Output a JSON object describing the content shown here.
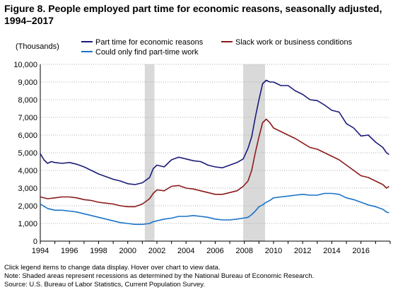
{
  "title": "Figure 8. People employed part time for economic reasons, seasonally adjusted, 1994–2017",
  "chart_data": {
    "type": "line",
    "ylabel": "(Thousands)",
    "xlim": [
      1994,
      2018
    ],
    "ylim": [
      0,
      10000
    ],
    "y_ticks": [
      0,
      1000,
      2000,
      3000,
      4000,
      5000,
      6000,
      7000,
      8000,
      9000,
      10000
    ],
    "y_tick_labels": [
      "0",
      "1,000",
      "2,000",
      "3,000",
      "4,000",
      "5,000",
      "6,000",
      "7,000",
      "8,000",
      "9,000",
      "10,000"
    ],
    "x_ticks": [
      1994,
      1996,
      1998,
      2000,
      2002,
      2004,
      2006,
      2008,
      2010,
      2012,
      2014,
      2016
    ],
    "x_tick_labels": [
      "1994",
      "1996",
      "1998",
      "2000",
      "2002",
      "2004",
      "2006",
      "2008",
      "2010",
      "2012",
      "2014",
      "2016"
    ],
    "grid": "horizontal dotted",
    "legend_position": "top",
    "recessions": [
      [
        2001.17,
        2001.83
      ],
      [
        2007.92,
        2009.42
      ]
    ],
    "series": [
      {
        "name": "Part time for economic reasons",
        "color": "#1a1a7a",
        "points": [
          [
            1994.0,
            4950
          ],
          [
            1994.25,
            4600
          ],
          [
            1994.5,
            4400
          ],
          [
            1994.75,
            4500
          ],
          [
            1995.0,
            4450
          ],
          [
            1995.5,
            4400
          ],
          [
            1996.0,
            4450
          ],
          [
            1996.5,
            4350
          ],
          [
            1997.0,
            4200
          ],
          [
            1997.5,
            4000
          ],
          [
            1998.0,
            3800
          ],
          [
            1998.5,
            3650
          ],
          [
            1999.0,
            3500
          ],
          [
            1999.5,
            3400
          ],
          [
            2000.0,
            3250
          ],
          [
            2000.5,
            3200
          ],
          [
            2001.0,
            3300
          ],
          [
            2001.5,
            3600
          ],
          [
            2001.75,
            4100
          ],
          [
            2002.0,
            4300
          ],
          [
            2002.5,
            4200
          ],
          [
            2003.0,
            4600
          ],
          [
            2003.5,
            4750
          ],
          [
            2004.0,
            4650
          ],
          [
            2004.5,
            4550
          ],
          [
            2005.0,
            4500
          ],
          [
            2005.5,
            4300
          ],
          [
            2006.0,
            4200
          ],
          [
            2006.5,
            4150
          ],
          [
            2007.0,
            4300
          ],
          [
            2007.5,
            4450
          ],
          [
            2007.92,
            4650
          ],
          [
            2008.25,
            5250
          ],
          [
            2008.5,
            5900
          ],
          [
            2008.75,
            7000
          ],
          [
            2009.0,
            8000
          ],
          [
            2009.25,
            8900
          ],
          [
            2009.5,
            9100
          ],
          [
            2009.75,
            9000
          ],
          [
            2010.0,
            9000
          ],
          [
            2010.5,
            8800
          ],
          [
            2011.0,
            8800
          ],
          [
            2011.5,
            8500
          ],
          [
            2012.0,
            8300
          ],
          [
            2012.5,
            8000
          ],
          [
            2013.0,
            7950
          ],
          [
            2013.5,
            7700
          ],
          [
            2014.0,
            7400
          ],
          [
            2014.5,
            7300
          ],
          [
            2015.0,
            6650
          ],
          [
            2015.5,
            6400
          ],
          [
            2016.0,
            5950
          ],
          [
            2016.5,
            6000
          ],
          [
            2017.0,
            5600
          ],
          [
            2017.5,
            5300
          ],
          [
            2017.75,
            5000
          ],
          [
            2017.92,
            4900
          ]
        ]
      },
      {
        "name": "Slack work or business conditions",
        "color": "#8b1a1a",
        "points": [
          [
            1994.0,
            2500
          ],
          [
            1994.5,
            2400
          ],
          [
            1995.0,
            2450
          ],
          [
            1995.5,
            2500
          ],
          [
            1996.0,
            2500
          ],
          [
            1996.5,
            2450
          ],
          [
            1997.0,
            2350
          ],
          [
            1997.5,
            2300
          ],
          [
            1998.0,
            2200
          ],
          [
            1998.5,
            2150
          ],
          [
            1999.0,
            2100
          ],
          [
            1999.5,
            2000
          ],
          [
            2000.0,
            1950
          ],
          [
            2000.5,
            1950
          ],
          [
            2001.0,
            2100
          ],
          [
            2001.5,
            2400
          ],
          [
            2001.75,
            2700
          ],
          [
            2002.0,
            2900
          ],
          [
            2002.5,
            2850
          ],
          [
            2003.0,
            3100
          ],
          [
            2003.5,
            3150
          ],
          [
            2004.0,
            3000
          ],
          [
            2004.5,
            2950
          ],
          [
            2005.0,
            2850
          ],
          [
            2005.5,
            2750
          ],
          [
            2006.0,
            2650
          ],
          [
            2006.5,
            2650
          ],
          [
            2007.0,
            2750
          ],
          [
            2007.5,
            2850
          ],
          [
            2007.92,
            3100
          ],
          [
            2008.25,
            3400
          ],
          [
            2008.5,
            4000
          ],
          [
            2008.75,
            5000
          ],
          [
            2009.0,
            5900
          ],
          [
            2009.25,
            6700
          ],
          [
            2009.5,
            6900
          ],
          [
            2009.75,
            6700
          ],
          [
            2010.0,
            6400
          ],
          [
            2010.5,
            6200
          ],
          [
            2011.0,
            6000
          ],
          [
            2011.5,
            5800
          ],
          [
            2012.0,
            5550
          ],
          [
            2012.5,
            5300
          ],
          [
            2013.0,
            5200
          ],
          [
            2013.5,
            5000
          ],
          [
            2014.0,
            4800
          ],
          [
            2014.5,
            4600
          ],
          [
            2015.0,
            4300
          ],
          [
            2015.5,
            4000
          ],
          [
            2016.0,
            3700
          ],
          [
            2016.5,
            3600
          ],
          [
            2017.0,
            3400
          ],
          [
            2017.5,
            3200
          ],
          [
            2017.75,
            3000
          ],
          [
            2017.92,
            3100
          ]
        ]
      },
      {
        "name": "Could only find part-time work",
        "color": "#1a73c8",
        "points": [
          [
            1994.0,
            2100
          ],
          [
            1994.5,
            1850
          ],
          [
            1995.0,
            1750
          ],
          [
            1995.5,
            1750
          ],
          [
            1996.0,
            1700
          ],
          [
            1996.5,
            1650
          ],
          [
            1997.0,
            1550
          ],
          [
            1997.5,
            1450
          ],
          [
            1998.0,
            1350
          ],
          [
            1998.5,
            1250
          ],
          [
            1999.0,
            1150
          ],
          [
            1999.5,
            1050
          ],
          [
            2000.0,
            1000
          ],
          [
            2000.5,
            950
          ],
          [
            2001.0,
            950
          ],
          [
            2001.5,
            1000
          ],
          [
            2001.75,
            1100
          ],
          [
            2002.0,
            1150
          ],
          [
            2002.5,
            1250
          ],
          [
            2003.0,
            1300
          ],
          [
            2003.5,
            1400
          ],
          [
            2004.0,
            1400
          ],
          [
            2004.5,
            1450
          ],
          [
            2005.0,
            1400
          ],
          [
            2005.5,
            1350
          ],
          [
            2006.0,
            1250
          ],
          [
            2006.5,
            1200
          ],
          [
            2007.0,
            1200
          ],
          [
            2007.5,
            1250
          ],
          [
            2007.92,
            1300
          ],
          [
            2008.25,
            1350
          ],
          [
            2008.5,
            1500
          ],
          [
            2008.75,
            1700
          ],
          [
            2009.0,
            1950
          ],
          [
            2009.25,
            2050
          ],
          [
            2009.5,
            2200
          ],
          [
            2009.75,
            2300
          ],
          [
            2010.0,
            2450
          ],
          [
            2010.5,
            2500
          ],
          [
            2011.0,
            2550
          ],
          [
            2011.5,
            2600
          ],
          [
            2012.0,
            2650
          ],
          [
            2012.5,
            2600
          ],
          [
            2013.0,
            2600
          ],
          [
            2013.5,
            2700
          ],
          [
            2014.0,
            2700
          ],
          [
            2014.5,
            2650
          ],
          [
            2015.0,
            2450
          ],
          [
            2015.5,
            2350
          ],
          [
            2016.0,
            2200
          ],
          [
            2016.5,
            2050
          ],
          [
            2017.0,
            1950
          ],
          [
            2017.5,
            1800
          ],
          [
            2017.75,
            1650
          ],
          [
            2017.92,
            1600
          ]
        ]
      }
    ]
  },
  "notes": {
    "line1": "Click legend items to change data display. Hover over chart to view data.",
    "line2": "Note: Shaded areas represent recessions as determined by the National Bureau of Economic Research.",
    "line3": "Source: U.S. Bureau of Labor Statistics, Current Population Survey."
  }
}
